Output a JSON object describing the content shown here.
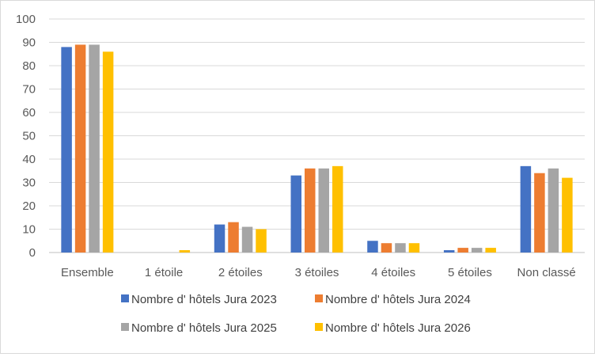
{
  "chart_data": {
    "type": "bar",
    "categories": [
      "Ensemble",
      "1 étoile",
      "2 étoiles",
      "3 étoiles",
      "4 étoiles",
      "5 étoiles",
      "Non classé"
    ],
    "series": [
      {
        "name": "Nombre d' hôtels Jura 2023",
        "color": "#4472C4",
        "values": [
          88,
          0,
          12,
          33,
          5,
          1,
          37
        ]
      },
      {
        "name": "Nombre d' hôtels Jura 2024",
        "color": "#ED7D31",
        "values": [
          89,
          0,
          13,
          36,
          4,
          2,
          34
        ]
      },
      {
        "name": "Nombre d' hôtels Jura 2025",
        "color": "#A5A5A5",
        "values": [
          89,
          0,
          11,
          36,
          4,
          2,
          36
        ]
      },
      {
        "name": "Nombre d' hôtels Jura 2026",
        "color": "#FFC000",
        "values": [
          86,
          1,
          10,
          37,
          4,
          2,
          32
        ]
      }
    ],
    "ylim": [
      0,
      100
    ],
    "yticks": [
      0,
      10,
      20,
      30,
      40,
      50,
      60,
      70,
      80,
      90,
      100
    ],
    "grid": true,
    "legend_position": "bottom"
  }
}
